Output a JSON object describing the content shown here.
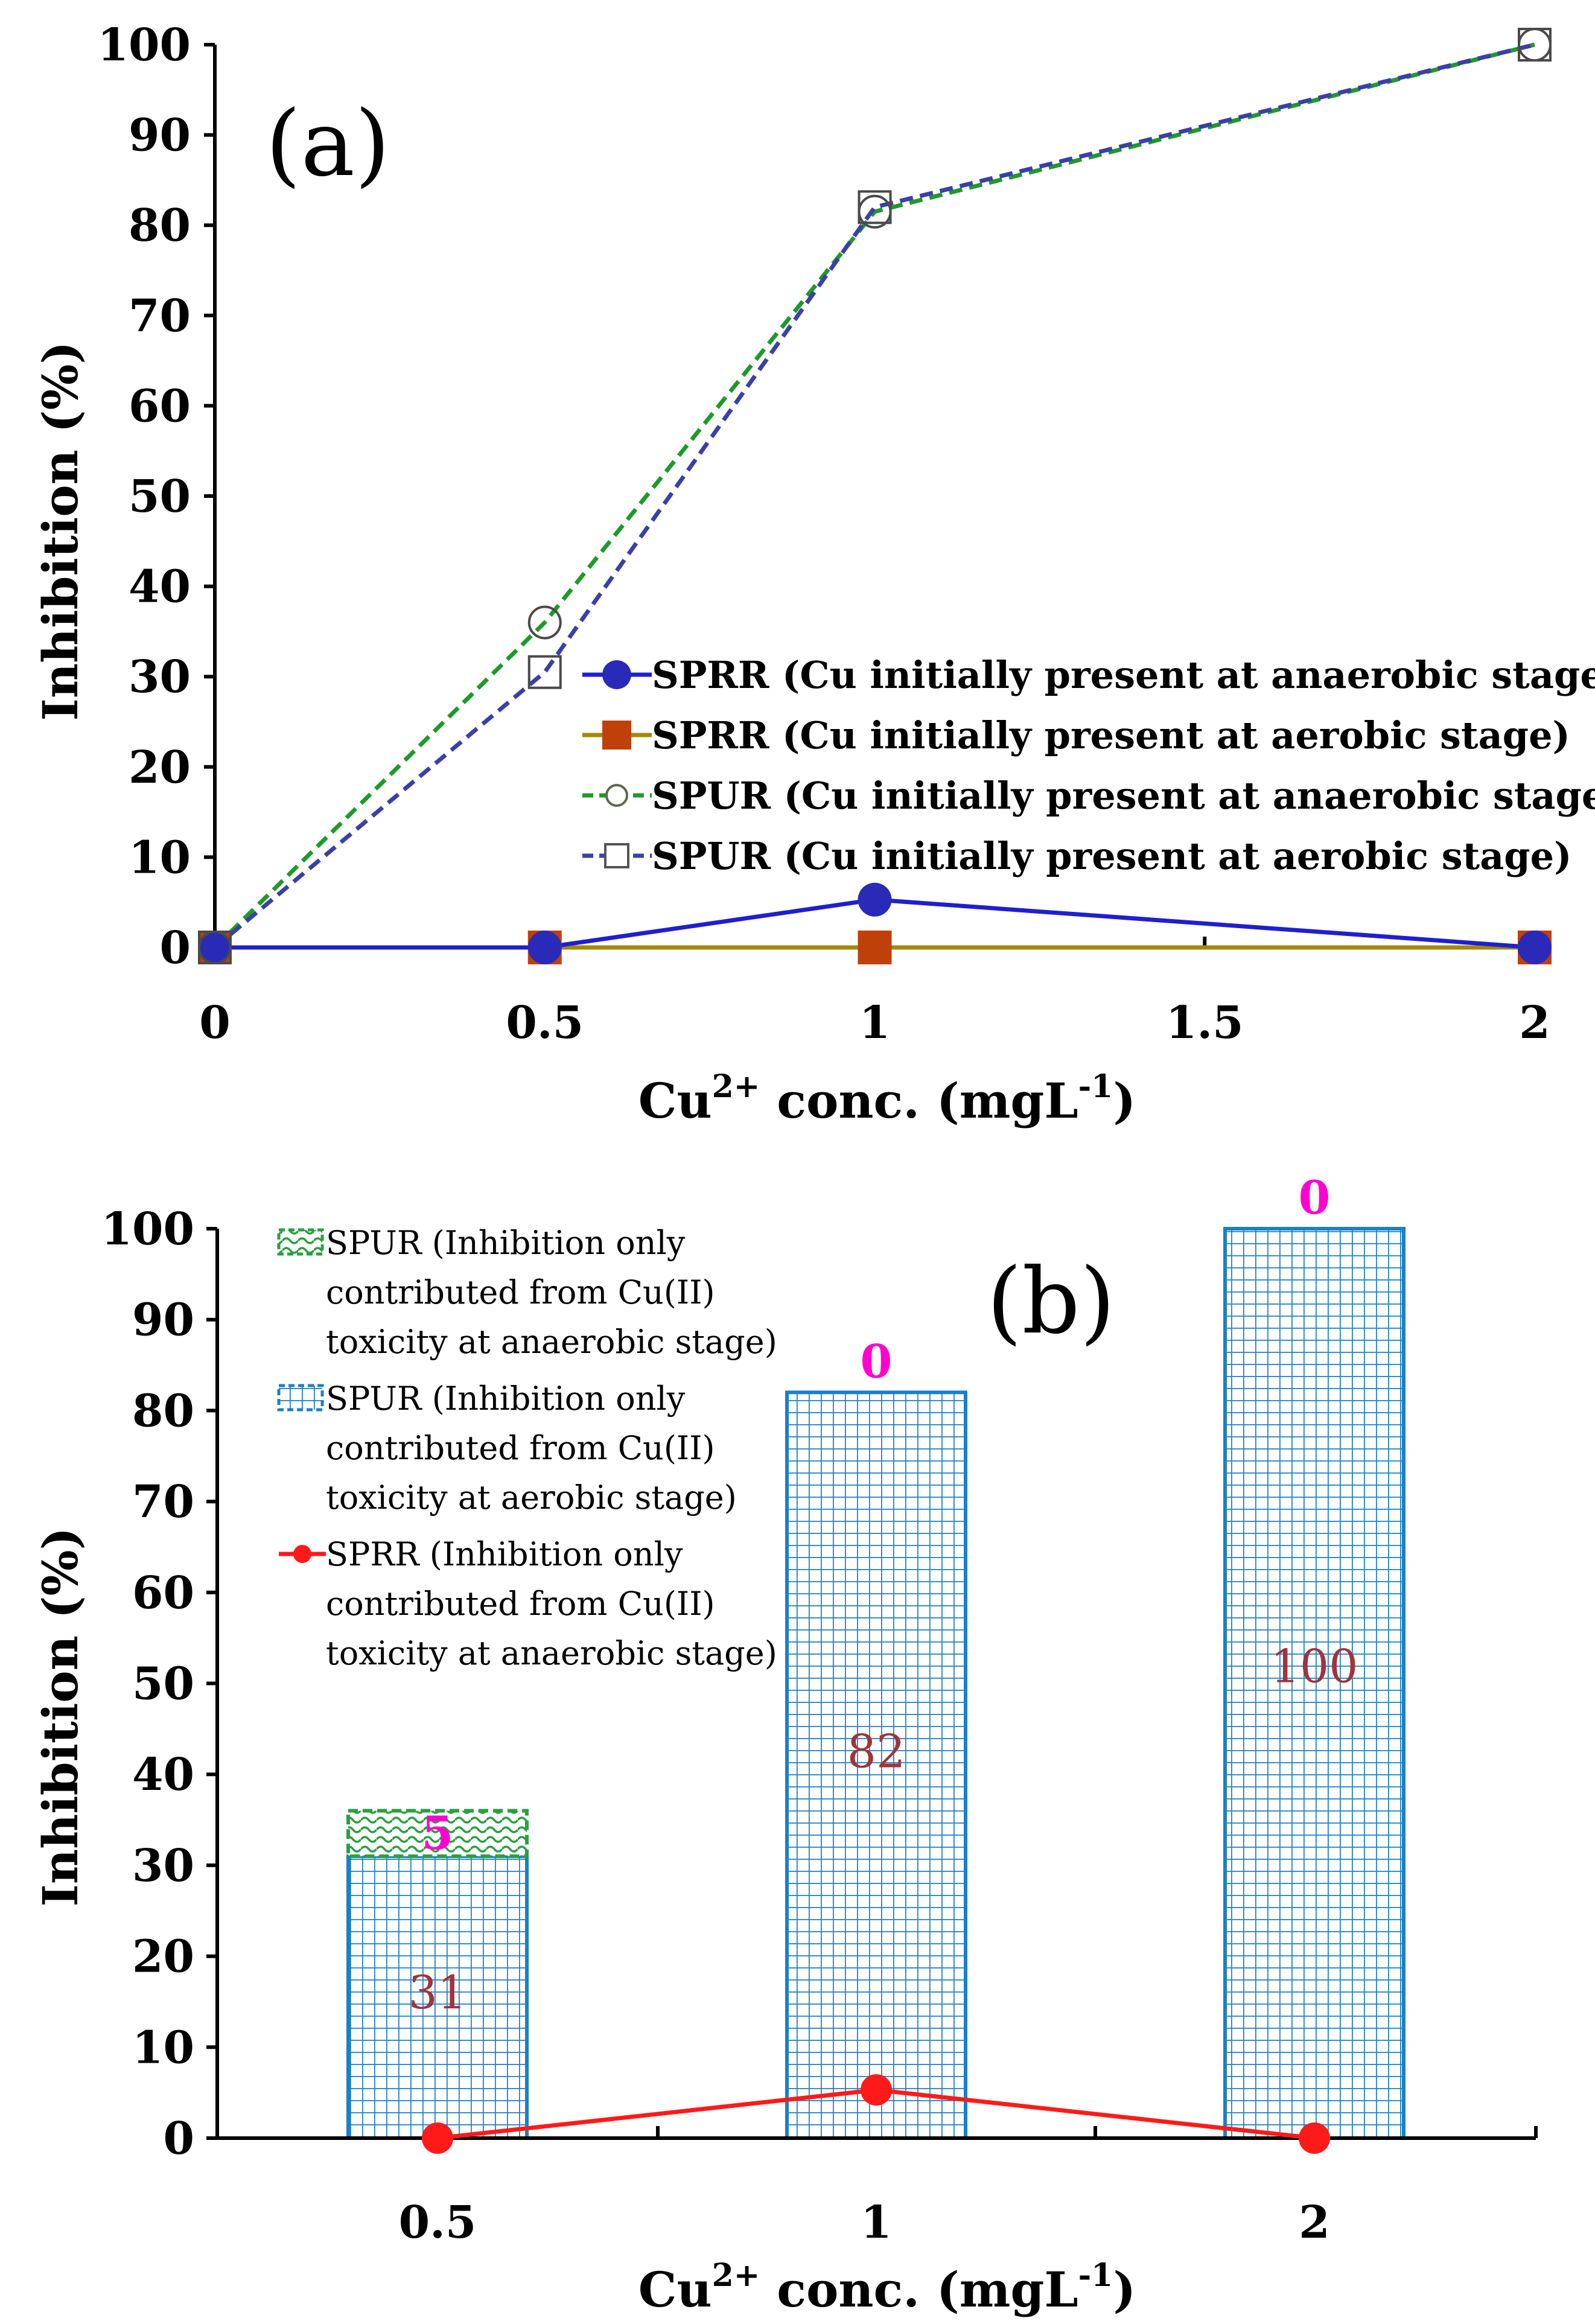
{
  "chart_data": [
    {
      "type": "line",
      "panel_label": "(a)",
      "xlabel": "Cu2+ conc. (mgL-1)",
      "xlabel_parts": {
        "base": "Cu",
        "sup1": "2+",
        "mid": " conc. (mgL",
        "sup2": "-1",
        "end": ")"
      },
      "ylabel": "Inhibition (%)",
      "xlim": [
        0,
        2
      ],
      "ylim": [
        0,
        100
      ],
      "x_ticks": [
        "0",
        "0.5",
        "1",
        "1.5",
        "2"
      ],
      "y_ticks": [
        "0",
        "10",
        "20",
        "30",
        "40",
        "50",
        "60",
        "70",
        "80",
        "90",
        "100"
      ],
      "legend_position": "center-right",
      "series": [
        {
          "name": "SPRR (Cu initially present at anaerobic stage)",
          "color": "#1f1fd0",
          "marker": "filled-circle",
          "line": "solid",
          "x": [
            0,
            0.5,
            1,
            2
          ],
          "values": [
            0,
            0,
            5.3,
            0
          ]
        },
        {
          "name": "SPRR (Cu initially present at aerobic stage)",
          "color": "#a38a00",
          "marker_color": "#c0400a",
          "marker": "filled-square",
          "line": "solid",
          "x": [
            0,
            0.5,
            1,
            2
          ],
          "values": [
            0,
            0,
            0,
            0
          ]
        },
        {
          "name": "SPUR (Cu initially present at anaerobic stage)",
          "color": "#1e9a2a",
          "marker": "open-circle",
          "line": "dashed",
          "x": [
            0,
            0.5,
            1,
            2
          ],
          "values": [
            0,
            36,
            81.5,
            100
          ]
        },
        {
          "name": "SPUR (Cu initially present at aerobic stage)",
          "color": "#3a40a8",
          "marker": "open-square",
          "line": "dashed",
          "x": [
            0,
            0.5,
            1,
            2
          ],
          "values": [
            0,
            30.5,
            82,
            100
          ]
        }
      ]
    },
    {
      "type": "bar",
      "stacked": true,
      "panel_label": "(b)",
      "xlabel": "Cu2+ conc. (mgL-1)",
      "ylabel": "Inhibition (%)",
      "categories": [
        "0.5",
        "1",
        "2"
      ],
      "ylim": [
        0,
        100
      ],
      "y_ticks": [
        "0",
        "10",
        "20",
        "30",
        "40",
        "50",
        "60",
        "70",
        "80",
        "90",
        "100"
      ],
      "legend_position": "top-left",
      "series": [
        {
          "name": "SPUR (Inhibition only contributed from Cu(II) toxicity at aerobic stage)",
          "legend_lines": [
            "SPUR (Inhibition only",
            "contributed from Cu(II)",
            "toxicity at aerobic stage)"
          ],
          "color": "#1a80c8",
          "values": [
            31,
            82,
            100
          ],
          "value_labels": [
            "31",
            "82",
            "100"
          ]
        },
        {
          "name": "SPUR (Inhibition only contributed from Cu(II) toxicity at anaerobic stage)",
          "legend_lines": [
            "SPUR (Inhibition only",
            "contributed from Cu(II)",
            "toxicity at anaerobic stage)"
          ],
          "color": "#2aa040",
          "values": [
            5,
            0,
            0
          ],
          "value_labels": [
            "5",
            "0",
            "0"
          ]
        },
        {
          "name": "SPRR (Inhibition only contributed from Cu(II) toxicity at anaerobic stage)",
          "legend_lines": [
            "SPRR (Inhibition only",
            "contributed from Cu(II)",
            "toxicity at anaerobic stage)"
          ],
          "type": "line",
          "color": "#ff1a1a",
          "values": [
            0,
            5.3,
            0
          ]
        }
      ]
    }
  ]
}
